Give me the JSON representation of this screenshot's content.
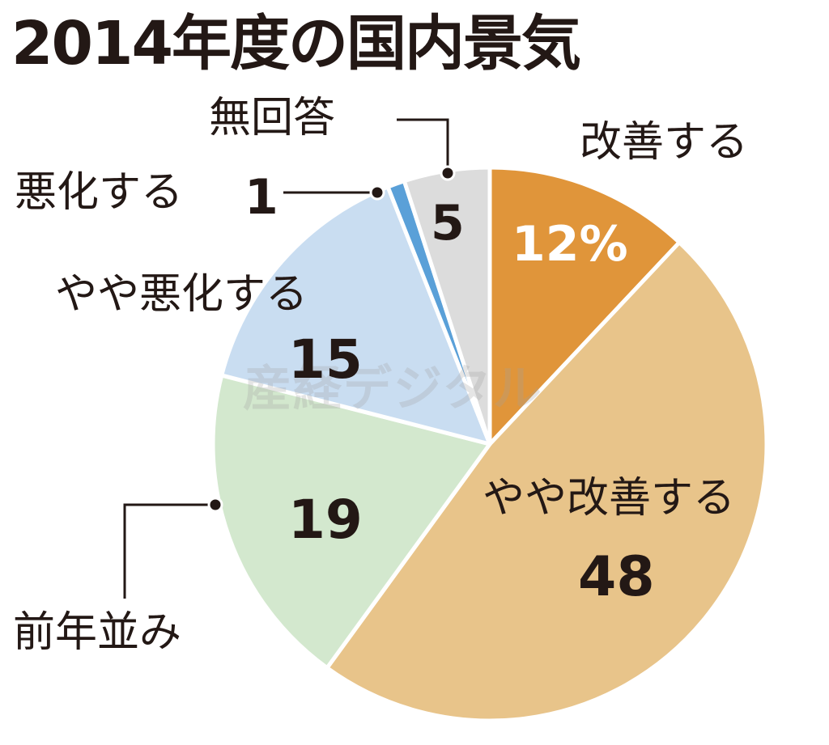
{
  "title": "2014年度の国内景気",
  "watermark": "産経デジタル",
  "chart_data": {
    "type": "pie",
    "title": "2014年度の国内景気",
    "unit": "%",
    "start_angle": "12 o'clock, clockwise",
    "categories": [
      "改善する",
      "やや改善する",
      "前年並み",
      "やや悪化する",
      "悪化する",
      "無回答"
    ],
    "values": [
      12,
      48,
      19,
      15,
      1,
      5
    ],
    "colors": [
      "#E0953A",
      "#E8C48A",
      "#D3E8CE",
      "#C9DDF1",
      "#5AA0D8",
      "#DCDCDC"
    ],
    "value_labels": [
      "12%",
      "48",
      "19",
      "15",
      "1",
      "5"
    ]
  },
  "labels": {
    "improve": {
      "name": "改善する",
      "value": "12%"
    },
    "slightly_improve": {
      "name": "やや改善する",
      "value": "48"
    },
    "same": {
      "name": "前年並み",
      "value": "19"
    },
    "slightly_worse": {
      "name": "やや悪化する",
      "value": "15"
    },
    "worse": {
      "name": "悪化する",
      "value": "1"
    },
    "no_answer": {
      "name": "無回答",
      "value": "5"
    }
  }
}
